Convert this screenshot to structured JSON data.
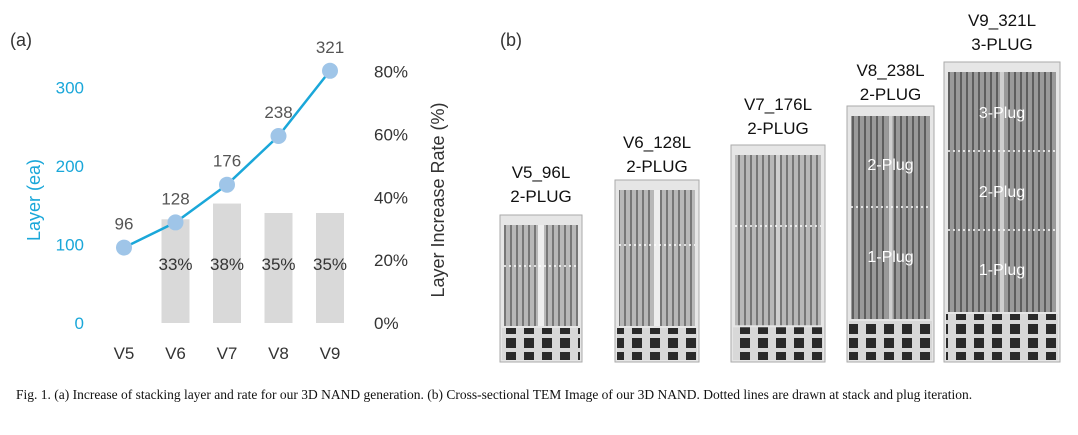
{
  "panel_a_label": "(a)",
  "panel_b_label": "(b)",
  "chart_data": {
    "type": "bar",
    "categories": [
      "V5",
      "V6",
      "V7",
      "V8",
      "V9"
    ],
    "series": [
      {
        "values": [
          96,
          128,
          176,
          238,
          321
        ],
        "color": "#1aa7d9",
        "marker_color": "#9fc5e8",
        "axis": "left",
        "style": "line",
        "labels": [
          "96",
          "128",
          "176",
          "238",
          "321"
        ]
      },
      {
        "values": [
          null,
          33,
          38,
          35,
          35
        ],
        "color": "#d9d9d9",
        "axis": "right",
        "style": "bar",
        "labels": [
          "",
          "33%",
          "38%",
          "35%",
          "35%"
        ]
      }
    ],
    "ylabel": "Layer (ea)",
    "y2label": "Layer Increase Rate (%)",
    "ylim": [
      0,
      350
    ],
    "y2lim": [
      0,
      87.5
    ],
    "yticks": [
      "0",
      "100",
      "200",
      "300"
    ],
    "y2ticks": [
      "0%",
      "20%",
      "40%",
      "60%",
      "80%"
    ],
    "grid": false
  },
  "tem_images": [
    {
      "title1": "V5_96L",
      "title2": "2-PLUG",
      "plugs": []
    },
    {
      "title1": "V6_128L",
      "title2": "2-PLUG",
      "plugs": []
    },
    {
      "title1": "V7_176L",
      "title2": "2-PLUG",
      "plugs": []
    },
    {
      "title1": "V8_238L",
      "title2": "2-PLUG",
      "plugs": [
        "2-Plug",
        "1-Plug"
      ]
    },
    {
      "title1": "V9_321L",
      "title2": "3-PLUG",
      "plugs": [
        "3-Plug",
        "2-Plug",
        "1-Plug"
      ]
    }
  ],
  "caption": "Fig. 1. (a) Increase of stacking layer and rate for our 3D NAND generation. (b) Cross-sectional TEM Image of our 3D NAND. Dotted lines are drawn at stack and plug iteration."
}
